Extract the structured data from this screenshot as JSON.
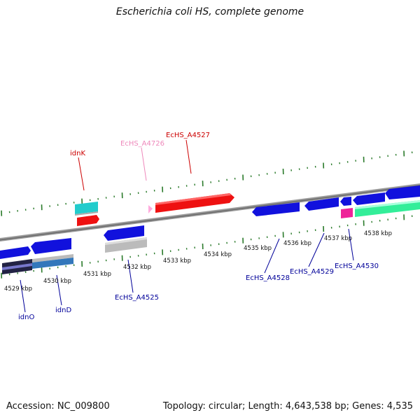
{
  "title": "Escherichia coli HS, complete genome",
  "footer": {
    "accession": "Accession: NC_009800",
    "topology": "Topology: circular; Length: 4,643,538 bp; Genes: 4,535"
  },
  "colors": {
    "backbone": "#8a8a8a",
    "tick": "#2a7a2a",
    "forward_label": "#cc0000",
    "forward_label_pseudo": "#ee88bb",
    "reverse_label": "#000099"
  },
  "scale_labels": [
    "4529 kbp",
    "4530 kbp",
    "4531 kbp",
    "4532 kbp",
    "4533 kbp",
    "4534 kbp",
    "4535 kbp",
    "4536 kbp",
    "4537 kbp",
    "4538 kbp"
  ],
  "features": [
    {
      "name": "idnK",
      "strand": "forward",
      "color": "#ee1111"
    },
    {
      "name": "EcHS_A4726",
      "strand": "forward",
      "color": "#ffaadd"
    },
    {
      "name": "EcHS_A4527",
      "strand": "forward",
      "color": "#ee1111"
    },
    {
      "name": "idnO",
      "strand": "reverse",
      "color": "#1111dd"
    },
    {
      "name": "idnD",
      "strand": "reverse",
      "color": "#1111dd"
    },
    {
      "name": "EcHS_A4525",
      "strand": "reverse",
      "color": "#1111dd"
    },
    {
      "name": "EcHS_A4528",
      "strand": "reverse",
      "color": "#1111dd"
    },
    {
      "name": "EcHS_A4529",
      "strand": "reverse",
      "color": "#1111dd"
    },
    {
      "name": "EcHS_A4530",
      "strand": "reverse",
      "color": "#1111dd"
    }
  ]
}
